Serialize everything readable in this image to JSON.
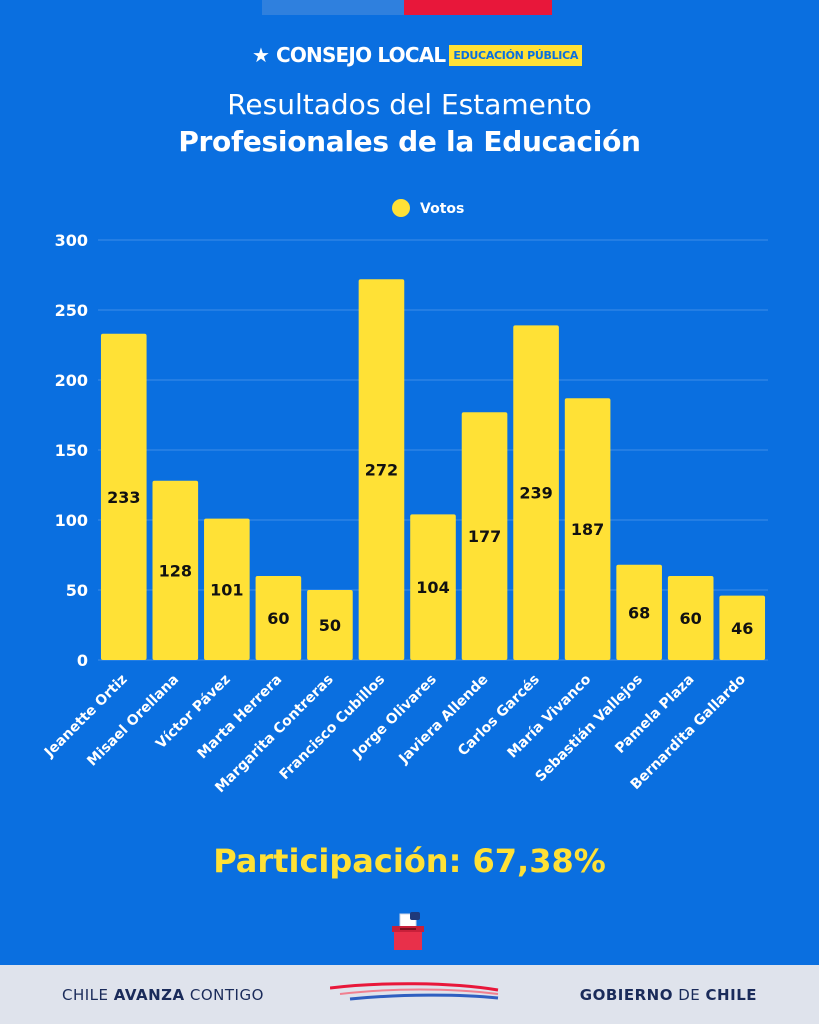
{
  "brand": {
    "logo_text": "CONSEJO LOCAL",
    "logo_tag": "EDUCACIÓN PÚBLICA",
    "colors": {
      "background": "#0a6fe0",
      "bar": "#ffe136",
      "accent_red": "#e8173a"
    }
  },
  "header": {
    "title_line1": "Resultados del Estamento",
    "title_line2": "Profesionales de la Educación"
  },
  "chart_data": {
    "type": "bar",
    "categories": [
      "Jeanette Ortiz",
      "Misael Orellana",
      "Víctor Pávez",
      "Marta Herrera",
      "Margarita Contreras",
      "Francisco Cubillos",
      "Jorge Olivares",
      "Javiera Allende",
      "Carlos Garcés",
      "María Vivanco",
      "Sebastián Vallejos",
      "Pamela Plaza",
      "Bernardita Gallardo"
    ],
    "series": [
      {
        "name": "Votos",
        "values": [
          233,
          128,
          101,
          60,
          50,
          272,
          104,
          177,
          239,
          187,
          68,
          60,
          46
        ]
      }
    ],
    "yticks": [
      "0",
      "50",
      "100",
      "150",
      "200",
      "250",
      "300"
    ],
    "ylim": [
      0,
      300
    ],
    "legend_position": "top-center",
    "grid": true
  },
  "participation": {
    "text": "Participación: 67,38%",
    "icon": "ballot-box-icon"
  },
  "footer": {
    "left_part1": "CHILE ",
    "left_bold": "AVANZA",
    "left_part2": " CONTIGO",
    "right_bold": "GOBIERNO",
    "right_part1": " DE ",
    "right_bold2": "CHILE"
  }
}
